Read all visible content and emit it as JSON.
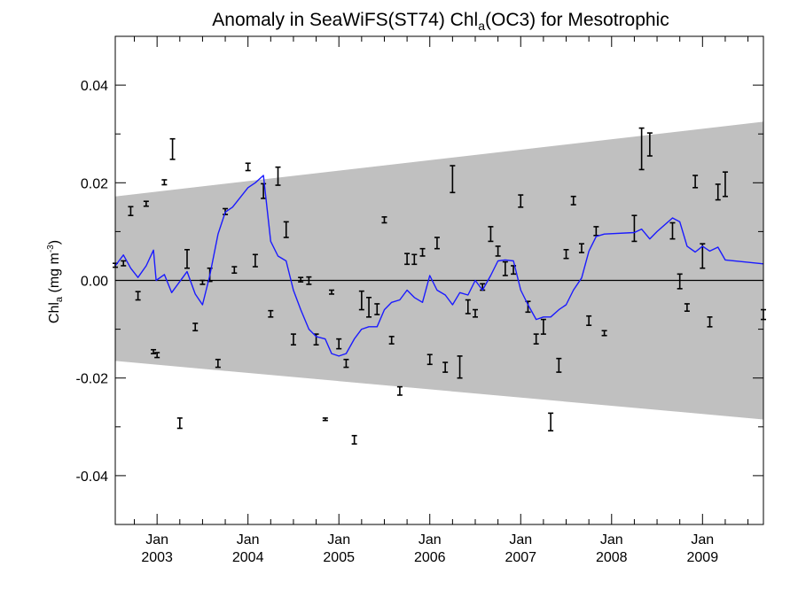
{
  "chart_data": {
    "type": "line",
    "title": {
      "pre": "Anomaly in SeaWiFS(ST74) Chl",
      "sub": "a",
      "post": "(OC3) for Mesotrophic"
    },
    "ylabel": {
      "pre": "Chl",
      "sub": "a",
      "mid": " (mg m",
      "sup": "-3",
      "post": ")"
    },
    "xlabel": "",
    "xlim": [
      2002.54,
      2009.67
    ],
    "ylim": [
      -0.05,
      0.05
    ],
    "grid": false,
    "y_ticks": [
      -0.04,
      -0.02,
      0.0,
      0.02,
      0.04
    ],
    "y_tick_labels": [
      "-0.04",
      "-0.02",
      "0.00",
      "0.02",
      "0.04"
    ],
    "x_ticks": [
      {
        "value": 2003.0,
        "month": "Jan",
        "year": "2003"
      },
      {
        "value": 2004.0,
        "month": "Jan",
        "year": "2004"
      },
      {
        "value": 2005.0,
        "month": "Jan",
        "year": "2005"
      },
      {
        "value": 2006.0,
        "month": "Jan",
        "year": "2006"
      },
      {
        "value": 2007.0,
        "month": "Jan",
        "year": "2007"
      },
      {
        "value": 2008.0,
        "month": "Jan",
        "year": "2008"
      },
      {
        "value": 2009.0,
        "month": "Jan",
        "year": "2009"
      }
    ],
    "zero_line": 0.0,
    "envelope": {
      "color": "#c0c0c0",
      "upper": [
        [
          2002.54,
          0.0172
        ],
        [
          2009.67,
          0.0325
        ]
      ],
      "lower": [
        [
          2002.54,
          -0.0165
        ],
        [
          2009.67,
          -0.0285
        ]
      ]
    },
    "smoothed_line": {
      "color": "#1a1aff",
      "points": [
        [
          2002.54,
          0.003
        ],
        [
          2002.63,
          0.0052
        ],
        [
          2002.71,
          0.0025
        ],
        [
          2002.79,
          0.0006
        ],
        [
          2002.88,
          0.003
        ],
        [
          2002.96,
          0.0062
        ],
        [
          2002.99,
          0.0
        ],
        [
          2003.08,
          0.0012
        ],
        [
          2003.16,
          -0.0025
        ],
        [
          2003.33,
          0.0018
        ],
        [
          2003.42,
          -0.0028
        ],
        [
          2003.5,
          -0.005
        ],
        [
          2003.58,
          0.001
        ],
        [
          2003.67,
          0.0095
        ],
        [
          2003.75,
          0.014
        ],
        [
          2003.83,
          0.015
        ],
        [
          2004.0,
          0.019
        ],
        [
          2004.08,
          0.02
        ],
        [
          2004.17,
          0.0215
        ],
        [
          2004.25,
          0.008
        ],
        [
          2004.33,
          0.005
        ],
        [
          2004.42,
          0.004
        ],
        [
          2004.5,
          -0.002
        ],
        [
          2004.58,
          -0.006
        ],
        [
          2004.67,
          -0.01
        ],
        [
          2004.75,
          -0.0115
        ],
        [
          2004.85,
          -0.012
        ],
        [
          2004.92,
          -0.015
        ],
        [
          2005.0,
          -0.0155
        ],
        [
          2005.08,
          -0.015
        ],
        [
          2005.17,
          -0.012
        ],
        [
          2005.25,
          -0.01
        ],
        [
          2005.33,
          -0.0095
        ],
        [
          2005.42,
          -0.0095
        ],
        [
          2005.5,
          -0.006
        ],
        [
          2005.58,
          -0.0045
        ],
        [
          2005.67,
          -0.004
        ],
        [
          2005.75,
          -0.002
        ],
        [
          2005.83,
          -0.0035
        ],
        [
          2005.92,
          -0.0045
        ],
        [
          2006.0,
          0.001
        ],
        [
          2006.08,
          -0.002
        ],
        [
          2006.17,
          -0.003
        ],
        [
          2006.25,
          -0.005
        ],
        [
          2006.33,
          -0.0025
        ],
        [
          2006.42,
          -0.003
        ],
        [
          2006.5,
          0.0
        ],
        [
          2006.58,
          -0.002
        ],
        [
          2006.67,
          0.001
        ],
        [
          2006.75,
          0.004
        ],
        [
          2006.83,
          0.0042
        ],
        [
          2006.92,
          0.004
        ],
        [
          2007.0,
          -0.002
        ],
        [
          2007.08,
          -0.005
        ],
        [
          2007.17,
          -0.008
        ],
        [
          2007.25,
          -0.0075
        ],
        [
          2007.33,
          -0.0075
        ],
        [
          2007.42,
          -0.006
        ],
        [
          2007.5,
          -0.005
        ],
        [
          2007.58,
          -0.002
        ],
        [
          2007.67,
          0.0005
        ],
        [
          2007.75,
          0.006
        ],
        [
          2007.83,
          0.009
        ],
        [
          2007.92,
          0.0095
        ],
        [
          2008.25,
          0.0098
        ],
        [
          2008.33,
          0.0105
        ],
        [
          2008.42,
          0.0085
        ],
        [
          2008.5,
          0.01
        ],
        [
          2008.67,
          0.0128
        ],
        [
          2008.75,
          0.012
        ],
        [
          2008.83,
          0.007
        ],
        [
          2008.92,
          0.0058
        ],
        [
          2009.0,
          0.007
        ],
        [
          2009.08,
          0.006
        ],
        [
          2009.17,
          0.0068
        ],
        [
          2009.25,
          0.0042
        ],
        [
          2009.67,
          0.0034
        ]
      ]
    },
    "error_bars": [
      {
        "x": 2002.54,
        "y_low": 0.0027,
        "y_high": 0.0035
      },
      {
        "x": 2002.63,
        "y_low": 0.003,
        "y_high": 0.004
      },
      {
        "x": 2002.71,
        "y_low": 0.0133,
        "y_high": 0.0151
      },
      {
        "x": 2002.79,
        "y_low": -0.004,
        "y_high": -0.0023
      },
      {
        "x": 2002.88,
        "y_low": 0.0152,
        "y_high": 0.0162
      },
      {
        "x": 2002.96,
        "y_low": -0.015,
        "y_high": -0.0142
      },
      {
        "x": 2003.0,
        "y_low": -0.0158,
        "y_high": -0.0148
      },
      {
        "x": 2003.08,
        "y_low": 0.0196,
        "y_high": 0.0206
      },
      {
        "x": 2003.17,
        "y_low": 0.0248,
        "y_high": 0.029
      },
      {
        "x": 2003.25,
        "y_low": -0.0303,
        "y_high": -0.0282
      },
      {
        "x": 2003.33,
        "y_low": 0.0025,
        "y_high": 0.0063
      },
      {
        "x": 2003.42,
        "y_low": -0.0103,
        "y_high": -0.0088
      },
      {
        "x": 2003.5,
        "y_low": -0.0008,
        "y_high": 0.0
      },
      {
        "x": 2003.58,
        "y_low": -0.0002,
        "y_high": 0.0025
      },
      {
        "x": 2003.67,
        "y_low": -0.0178,
        "y_high": -0.0162
      },
      {
        "x": 2003.75,
        "y_low": 0.0135,
        "y_high": 0.0147
      },
      {
        "x": 2003.85,
        "y_low": 0.0015,
        "y_high": 0.0028
      },
      {
        "x": 2004.0,
        "y_low": 0.0225,
        "y_high": 0.024
      },
      {
        "x": 2004.08,
        "y_low": 0.0028,
        "y_high": 0.0053
      },
      {
        "x": 2004.17,
        "y_low": 0.0168,
        "y_high": 0.0198
      },
      {
        "x": 2004.25,
        "y_low": -0.0075,
        "y_high": -0.0062
      },
      {
        "x": 2004.33,
        "y_low": 0.0195,
        "y_high": 0.0232
      },
      {
        "x": 2004.42,
        "y_low": 0.0088,
        "y_high": 0.012
      },
      {
        "x": 2004.5,
        "y_low": -0.0132,
        "y_high": -0.011
      },
      {
        "x": 2004.58,
        "y_low": -0.0003,
        "y_high": 0.0006
      },
      {
        "x": 2004.67,
        "y_low": -0.0008,
        "y_high": 0.0007
      },
      {
        "x": 2004.75,
        "y_low": -0.0132,
        "y_high": -0.011
      },
      {
        "x": 2004.85,
        "y_low": -0.0287,
        "y_high": -0.0282
      },
      {
        "x": 2004.92,
        "y_low": -0.0028,
        "y_high": -0.002
      },
      {
        "x": 2005.0,
        "y_low": -0.014,
        "y_high": -0.012
      },
      {
        "x": 2005.08,
        "y_low": -0.0178,
        "y_high": -0.0162
      },
      {
        "x": 2005.17,
        "y_low": -0.0335,
        "y_high": -0.0318
      },
      {
        "x": 2005.25,
        "y_low": -0.006,
        "y_high": -0.0022
      },
      {
        "x": 2005.33,
        "y_low": -0.0075,
        "y_high": -0.0035
      },
      {
        "x": 2005.42,
        "y_low": -0.007,
        "y_high": -0.0048
      },
      {
        "x": 2005.5,
        "y_low": 0.0118,
        "y_high": 0.013
      },
      {
        "x": 2005.58,
        "y_low": -0.013,
        "y_high": -0.0115
      },
      {
        "x": 2005.67,
        "y_low": -0.0235,
        "y_high": -0.0218
      },
      {
        "x": 2005.75,
        "y_low": 0.0033,
        "y_high": 0.0055
      },
      {
        "x": 2005.83,
        "y_low": 0.0033,
        "y_high": 0.0053
      },
      {
        "x": 2005.92,
        "y_low": 0.005,
        "y_high": 0.0065
      },
      {
        "x": 2006.0,
        "y_low": -0.0172,
        "y_high": -0.0152
      },
      {
        "x": 2006.08,
        "y_low": 0.0065,
        "y_high": 0.0088
      },
      {
        "x": 2006.17,
        "y_low": -0.0188,
        "y_high": -0.0168
      },
      {
        "x": 2006.25,
        "y_low": 0.018,
        "y_high": 0.0235
      },
      {
        "x": 2006.33,
        "y_low": -0.02,
        "y_high": -0.0155
      },
      {
        "x": 2006.42,
        "y_low": -0.0068,
        "y_high": -0.004
      },
      {
        "x": 2006.5,
        "y_low": -0.0075,
        "y_high": -0.006
      },
      {
        "x": 2006.58,
        "y_low": -0.002,
        "y_high": -0.0007
      },
      {
        "x": 2006.67,
        "y_low": 0.008,
        "y_high": 0.011
      },
      {
        "x": 2006.75,
        "y_low": 0.005,
        "y_high": 0.007
      },
      {
        "x": 2006.83,
        "y_low": 0.001,
        "y_high": 0.0038
      },
      {
        "x": 2006.92,
        "y_low": 0.0013,
        "y_high": 0.003
      },
      {
        "x": 2007.0,
        "y_low": 0.015,
        "y_high": 0.0175
      },
      {
        "x": 2007.08,
        "y_low": -0.0065,
        "y_high": -0.0043
      },
      {
        "x": 2007.17,
        "y_low": -0.013,
        "y_high": -0.011
      },
      {
        "x": 2007.25,
        "y_low": -0.011,
        "y_high": -0.008
      },
      {
        "x": 2007.33,
        "y_low": -0.0308,
        "y_high": -0.0272
      },
      {
        "x": 2007.42,
        "y_low": -0.0188,
        "y_high": -0.016
      },
      {
        "x": 2007.5,
        "y_low": 0.0045,
        "y_high": 0.0063
      },
      {
        "x": 2007.58,
        "y_low": 0.0155,
        "y_high": 0.0172
      },
      {
        "x": 2007.67,
        "y_low": 0.0057,
        "y_high": 0.0075
      },
      {
        "x": 2007.75,
        "y_low": -0.0092,
        "y_high": -0.0073
      },
      {
        "x": 2007.83,
        "y_low": 0.0092,
        "y_high": 0.011
      },
      {
        "x": 2007.92,
        "y_low": -0.0113,
        "y_high": -0.0103
      },
      {
        "x": 2008.25,
        "y_low": 0.008,
        "y_high": 0.0133
      },
      {
        "x": 2008.33,
        "y_low": 0.0227,
        "y_high": 0.0312
      },
      {
        "x": 2008.42,
        "y_low": 0.0255,
        "y_high": 0.0302
      },
      {
        "x": 2008.67,
        "y_low": 0.0085,
        "y_high": 0.0118
      },
      {
        "x": 2008.75,
        "y_low": -0.0017,
        "y_high": 0.0013
      },
      {
        "x": 2008.83,
        "y_low": -0.0063,
        "y_high": -0.0048
      },
      {
        "x": 2008.92,
        "y_low": 0.019,
        "y_high": 0.0215
      },
      {
        "x": 2009.0,
        "y_low": 0.0025,
        "y_high": 0.0075
      },
      {
        "x": 2009.08,
        "y_low": -0.0095,
        "y_high": -0.0075
      },
      {
        "x": 2009.17,
        "y_low": 0.0165,
        "y_high": 0.0197
      },
      {
        "x": 2009.25,
        "y_low": 0.0172,
        "y_high": 0.0222
      },
      {
        "x": 2009.67,
        "y_low": -0.008,
        "y_high": -0.006
      }
    ]
  }
}
